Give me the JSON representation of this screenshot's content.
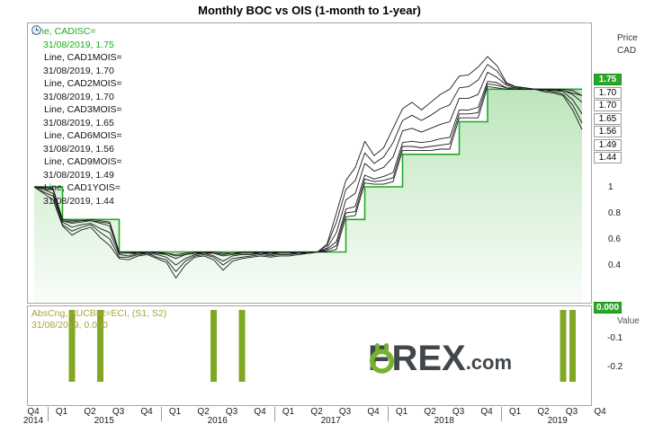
{
  "title": "Monthly BOC vs OIS (1-month to 1-year)",
  "main_panel": {
    "right_axis": {
      "unit_top": "Price",
      "unit_bottom": "CAD",
      "badges": [
        {
          "text": "1.75",
          "green": true
        },
        {
          "text": "1.70"
        },
        {
          "text": "1.70"
        },
        {
          "text": "1.65"
        },
        {
          "text": "1.56"
        },
        {
          "text": "1.49"
        },
        {
          "text": "1.44"
        }
      ],
      "ticks": [
        {
          "label": "1",
          "value": 1
        },
        {
          "label": "0.8",
          "value": 0.8
        },
        {
          "label": "0.6",
          "value": 0.6
        },
        {
          "label": "0.4",
          "value": 0.4
        }
      ]
    }
  },
  "lower_panel": {
    "legend_name": "AbsCng, AUCBIR=ECI, (S1, S2)",
    "legend_value": "31/08/2019, 0.000",
    "right_axis": {
      "badge": "0.000",
      "label": "Value",
      "ticks": [
        {
          "label": "-0.1",
          "value": -0.1
        },
        {
          "label": "-0.2",
          "value": -0.2
        }
      ]
    }
  },
  "x_axis": {
    "quarters": [
      "Q4",
      "Q1",
      "Q2",
      "Q3",
      "Q4",
      "Q1",
      "Q2",
      "Q3",
      "Q4",
      "Q1",
      "Q2",
      "Q3",
      "Q4",
      "Q1",
      "Q2",
      "Q3",
      "Q4",
      "Q1",
      "Q2",
      "Q3",
      "Q4"
    ],
    "years": [
      {
        "label": "2014",
        "from": 0,
        "to": 0
      },
      {
        "label": "2015",
        "from": 1,
        "to": 4
      },
      {
        "label": "2016",
        "from": 5,
        "to": 8
      },
      {
        "label": "2017",
        "from": 9,
        "to": 12
      },
      {
        "label": "2018",
        "from": 13,
        "to": 16
      },
      {
        "label": "2019",
        "from": 17,
        "to": 20
      }
    ]
  },
  "watermark": {
    "f": "F",
    "rex": "REX",
    "dotcom": ".com"
  },
  "chart_data": [
    {
      "type": "line",
      "title": "Monthly BOC vs OIS (1-month to 1-year)",
      "x_unit": "months",
      "x_start": "2014-10",
      "x_end": "2019-08",
      "ylim": [
        0.15,
        2.05
      ],
      "yticks": [
        0.4,
        0.6,
        0.8,
        1.0
      ],
      "legend_position": "top-left",
      "series": [
        {
          "id": "cadisc",
          "label": "Line, CADISC=",
          "last": "31/08/2019, 1.75",
          "color": "#22aa22",
          "style": "step-area",
          "clock": false,
          "values": [
            1,
            1,
            1,
            0.75,
            0.75,
            0.75,
            0.75,
            0.75,
            0.75,
            0.5,
            0.5,
            0.5,
            0.5,
            0.5,
            0.5,
            0.5,
            0.5,
            0.5,
            0.5,
            0.5,
            0.5,
            0.5,
            0.5,
            0.5,
            0.5,
            0.5,
            0.5,
            0.5,
            0.5,
            0.5,
            0.5,
            0.5,
            0.5,
            0.75,
            0.75,
            1,
            1,
            1,
            1,
            1.25,
            1.25,
            1.25,
            1.25,
            1.25,
            1.25,
            1.5,
            1.5,
            1.5,
            1.75,
            1.75,
            1.75,
            1.75,
            1.75,
            1.75,
            1.75,
            1.75,
            1.75,
            1.75,
            1.75
          ]
        },
        {
          "id": "cad1mois",
          "label": "Line, CAD1MOIS=",
          "last": "31/08/2019, 1.70",
          "color": "#1c1c1c",
          "style": "line",
          "clock": true,
          "values": [
            1,
            1,
            0.99,
            0.75,
            0.74,
            0.74,
            0.75,
            0.74,
            0.73,
            0.5,
            0.5,
            0.5,
            0.5,
            0.5,
            0.49,
            0.48,
            0.49,
            0.5,
            0.5,
            0.5,
            0.49,
            0.49,
            0.5,
            0.5,
            0.5,
            0.5,
            0.5,
            0.5,
            0.5,
            0.5,
            0.5,
            0.5,
            0.52,
            0.77,
            0.78,
            1.03,
            1.02,
            1.02,
            1.04,
            1.28,
            1.28,
            1.28,
            1.28,
            1.29,
            1.29,
            1.53,
            1.53,
            1.53,
            1.77,
            1.76,
            1.75,
            1.75,
            1.75,
            1.75,
            1.75,
            1.75,
            1.75,
            1.74,
            1.7
          ]
        },
        {
          "id": "cad2mois",
          "label": "Line, CAD2MOIS=",
          "last": "31/08/2019, 1.70",
          "color": "#1c1c1c",
          "style": "line",
          "clock": true,
          "values": [
            1,
            0.99,
            0.98,
            0.74,
            0.73,
            0.74,
            0.74,
            0.73,
            0.72,
            0.49,
            0.49,
            0.5,
            0.5,
            0.49,
            0.49,
            0.47,
            0.48,
            0.49,
            0.5,
            0.49,
            0.48,
            0.49,
            0.49,
            0.49,
            0.5,
            0.49,
            0.5,
            0.5,
            0.5,
            0.5,
            0.5,
            0.51,
            0.55,
            0.8,
            0.81,
            1.06,
            1.04,
            1.05,
            1.07,
            1.31,
            1.31,
            1.3,
            1.31,
            1.32,
            1.33,
            1.56,
            1.56,
            1.57,
            1.79,
            1.78,
            1.76,
            1.75,
            1.75,
            1.75,
            1.75,
            1.75,
            1.74,
            1.72,
            1.7
          ]
        },
        {
          "id": "cad3mois",
          "label": "Line, CAD3MOIS=",
          "last": "31/08/2019, 1.65",
          "color": "#1c1c1c",
          "style": "line",
          "clock": true,
          "values": [
            1,
            0.99,
            0.98,
            0.74,
            0.72,
            0.73,
            0.74,
            0.72,
            0.7,
            0.49,
            0.49,
            0.49,
            0.5,
            0.49,
            0.48,
            0.45,
            0.48,
            0.49,
            0.49,
            0.49,
            0.47,
            0.48,
            0.49,
            0.49,
            0.49,
            0.49,
            0.49,
            0.49,
            0.5,
            0.5,
            0.5,
            0.52,
            0.58,
            0.83,
            0.85,
            1.09,
            1.06,
            1.08,
            1.11,
            1.34,
            1.35,
            1.34,
            1.35,
            1.37,
            1.38,
            1.59,
            1.59,
            1.61,
            1.81,
            1.8,
            1.76,
            1.76,
            1.75,
            1.75,
            1.75,
            1.74,
            1.74,
            1.71,
            1.65
          ]
        },
        {
          "id": "cad6mois",
          "label": "Line, CAD6MOIS=",
          "last": "31/08/2019, 1.56",
          "color": "#1c1c1c",
          "style": "line",
          "clock": true,
          "values": [
            1,
            0.98,
            0.95,
            0.73,
            0.69,
            0.71,
            0.72,
            0.68,
            0.65,
            0.48,
            0.47,
            0.49,
            0.49,
            0.48,
            0.46,
            0.4,
            0.45,
            0.48,
            0.49,
            0.47,
            0.43,
            0.47,
            0.48,
            0.48,
            0.49,
            0.48,
            0.49,
            0.49,
            0.49,
            0.5,
            0.5,
            0.53,
            0.65,
            0.9,
            0.95,
            1.18,
            1.12,
            1.15,
            1.23,
            1.43,
            1.45,
            1.42,
            1.45,
            1.48,
            1.5,
            1.68,
            1.68,
            1.71,
            1.88,
            1.84,
            1.78,
            1.76,
            1.76,
            1.75,
            1.74,
            1.74,
            1.73,
            1.67,
            1.56
          ]
        },
        {
          "id": "cad9mois",
          "label": "Line, CAD9MOIS=",
          "last": "31/08/2019, 1.49",
          "color": "#1c1c1c",
          "style": "line",
          "clock": true,
          "values": [
            1,
            0.96,
            0.93,
            0.71,
            0.66,
            0.69,
            0.71,
            0.65,
            0.6,
            0.46,
            0.46,
            0.48,
            0.49,
            0.46,
            0.44,
            0.35,
            0.43,
            0.47,
            0.48,
            0.46,
            0.4,
            0.45,
            0.46,
            0.47,
            0.48,
            0.47,
            0.48,
            0.48,
            0.49,
            0.49,
            0.5,
            0.55,
            0.73,
            0.98,
            1.05,
            1.26,
            1.18,
            1.23,
            1.34,
            1.51,
            1.55,
            1.51,
            1.55,
            1.6,
            1.63,
            1.76,
            1.77,
            1.82,
            1.94,
            1.89,
            1.79,
            1.77,
            1.76,
            1.75,
            1.74,
            1.73,
            1.71,
            1.63,
            1.49
          ]
        },
        {
          "id": "cad1yois",
          "label": "Line, CAD1YOIS=",
          "last": "31/08/2019, 1.44",
          "color": "#1c1c1c",
          "style": "line",
          "clock": true,
          "values": [
            1,
            0.95,
            0.9,
            0.7,
            0.63,
            0.67,
            0.69,
            0.61,
            0.55,
            0.45,
            0.44,
            0.47,
            0.48,
            0.45,
            0.42,
            0.3,
            0.4,
            0.46,
            0.47,
            0.44,
            0.36,
            0.43,
            0.45,
            0.46,
            0.47,
            0.46,
            0.47,
            0.47,
            0.48,
            0.49,
            0.5,
            0.56,
            0.8,
            1.05,
            1.15,
            1.35,
            1.24,
            1.3,
            1.45,
            1.6,
            1.65,
            1.59,
            1.65,
            1.71,
            1.75,
            1.85,
            1.86,
            1.92,
            2,
            1.93,
            1.8,
            1.77,
            1.76,
            1.75,
            1.73,
            1.72,
            1.7,
            1.59,
            1.44
          ]
        }
      ]
    },
    {
      "type": "bar",
      "label": "AbsCng, AUCBIR=ECI, (S1, S2)",
      "last": "31/08/2019, 0.000",
      "color": "#80a824",
      "ylim": [
        -0.27,
        0.02
      ],
      "yticks": [
        -0.1,
        -0.2
      ],
      "bars": [
        {
          "month": 4,
          "value": -0.25
        },
        {
          "month": 7,
          "value": -0.25
        },
        {
          "month": 19,
          "value": -0.25
        },
        {
          "month": 22,
          "value": -0.25
        },
        {
          "month": 56,
          "value": -0.25
        },
        {
          "month": 57,
          "value": -0.25
        }
      ]
    }
  ]
}
